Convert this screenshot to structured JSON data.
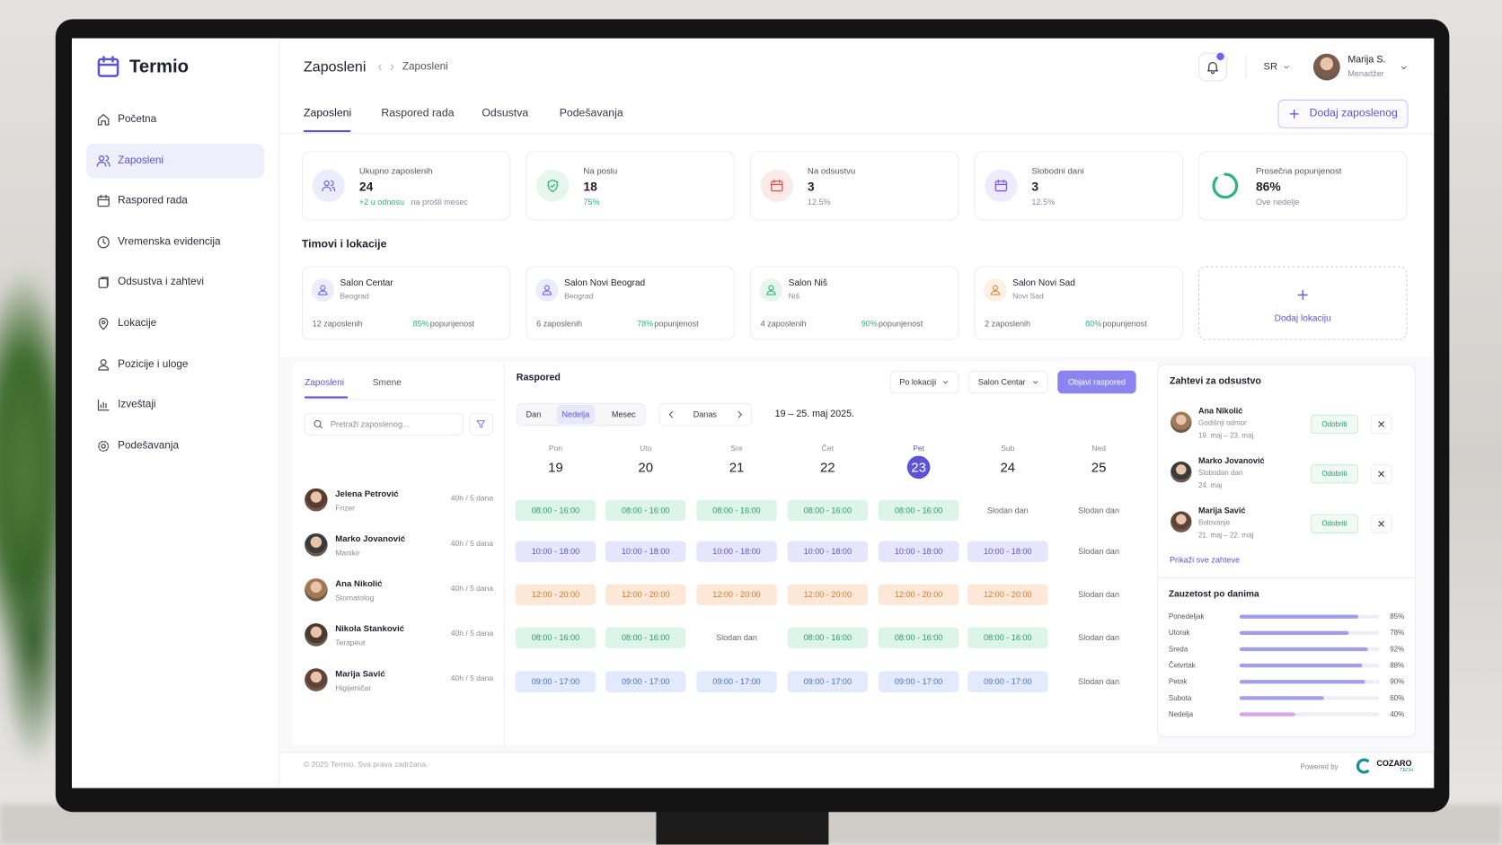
{
  "app": {
    "name": "Termio"
  },
  "sidebar": {
    "items": [
      "Početna",
      "Zaposleni",
      "Raspored rada",
      "Vremenska evidencija",
      "Odsustva i zahtevi",
      "Lokacije",
      "Pozicije i uloge",
      "Izveštaji",
      "Podešavanja"
    ]
  },
  "header": {
    "title": "Zaposleni",
    "breadcrumb": "Zaposleni",
    "language": "SR",
    "user_name": "Marija S.",
    "user_role": "Menadžer"
  },
  "tabs": {
    "items": [
      "Zaposleni",
      "Raspored rada",
      "Odsustva",
      "Podešavanja"
    ],
    "add_button": "Dodaj zaposlenog"
  },
  "stats": [
    {
      "label": "Ukupno zaposlenih",
      "value": 24,
      "note_highlight": "+2 u odnosu",
      "note": "na prošli mesec",
      "color": "#6c63ff"
    },
    {
      "label": "Na poslu",
      "value": 18,
      "note": "75%",
      "note_color": "#2fb47c",
      "color": "#2fb47c"
    },
    {
      "label": "Na odsustvu",
      "value": 3,
      "note": "12.5%",
      "color": "#e5534b"
    },
    {
      "label": "Slobodni dani",
      "value": 3,
      "note": "12.5%",
      "color": "#7a5af8"
    },
    {
      "label": "Prosečna popunjenost",
      "value": 86,
      "value_label": "86%",
      "note": "Ove nedelje",
      "color": "#2fb47c"
    }
  ],
  "teams": {
    "title": "Timovi i lokacije",
    "occupancy_label": "popunjenost",
    "add": "Dodaj lokaciju",
    "items": [
      {
        "name": "Salon Centar",
        "city": "Beograd",
        "employees": "12 zaposlenih",
        "occupancy": "85%",
        "color": "#6c63ff"
      },
      {
        "name": "Salon Novi Beograd",
        "city": "Beograd",
        "employees": "6 zaposlenih",
        "occupancy": "78%",
        "color": "#6c63ff"
      },
      {
        "name": "Salon Niš",
        "city": "Niš",
        "employees": "4 zaposlenih",
        "occupancy": "90%",
        "color": "#2fb47c"
      },
      {
        "name": "Salon Novi Sad",
        "city": "Novi Sad",
        "employees": "2 zaposlenih",
        "occupancy": "80%",
        "color": "#e8833a"
      }
    ]
  },
  "staff": {
    "tabs": [
      "Zaposleni",
      "Smene"
    ],
    "search_placeholder": "Pretraži zaposlenog...",
    "employees": [
      {
        "name": "Jelena Petrović",
        "role": "Frizer",
        "hours": "40h / 5 dana"
      },
      {
        "name": "Marko Jovanović",
        "role": "Manikir",
        "hours": "40h / 5 dana"
      },
      {
        "name": "Ana Nikolić",
        "role": "Stomatolog",
        "hours": "40h / 5 dana"
      },
      {
        "name": "Nikola Stanković",
        "role": "Terapeut",
        "hours": "40h / 5 dana"
      },
      {
        "name": "Marija Savić",
        "role": "Higijeničar",
        "hours": "40h / 5 dana"
      }
    ]
  },
  "schedule": {
    "title": "Raspored",
    "filter_location": "Po lokaciji",
    "filter_salon": "Salon Centar",
    "publish": "Objavi raspored",
    "views": [
      "Dan",
      "Nedelja",
      "Mesec"
    ],
    "today": "Danas",
    "range": "19 – 25. maj 2025.",
    "days": [
      {
        "name": "Pon",
        "date": 19
      },
      {
        "name": "Uto",
        "date": 20
      },
      {
        "name": "Sre",
        "date": 21
      },
      {
        "name": "Čet",
        "date": 22
      },
      {
        "name": "Pet",
        "date": 23
      },
      {
        "name": "Sub",
        "date": 24
      },
      {
        "name": "Ned",
        "date": 25
      }
    ],
    "off_label": "Slodan dan",
    "rows": [
      {
        "shift": "08:00 - 16:00",
        "bg": "#dcf4ea",
        "color": "#2a9a6a",
        "working": [
          true,
          true,
          true,
          true,
          true,
          false,
          false
        ]
      },
      {
        "shift": "10:00 - 18:00",
        "bg": "#e6e5fb",
        "color": "#5a55cf",
        "working": [
          true,
          true,
          true,
          true,
          true,
          true,
          false
        ]
      },
      {
        "shift": "12:00 - 20:00",
        "bg": "#fde8d8",
        "color": "#d07a2c",
        "working": [
          true,
          true,
          true,
          true,
          true,
          true,
          false
        ]
      },
      {
        "shift": "08:00 - 16:00",
        "bg": "#dcf4ea",
        "color": "#2a9a6a",
        "working": [
          true,
          true,
          false,
          true,
          true,
          true,
          false
        ]
      },
      {
        "shift": "09:00 - 17:00",
        "bg": "#e2eafb",
        "color": "#4670c4",
        "working": [
          true,
          true,
          true,
          true,
          true,
          true,
          false
        ]
      }
    ]
  },
  "requests": {
    "title": "Zahtevi za odsustvo",
    "approve": "Odobriti",
    "show_all": "Prikaži sve zahteve",
    "items": [
      {
        "name": "Ana Nikolić",
        "type": "Godišnji odmor",
        "dates": "19. maj – 23. maj"
      },
      {
        "name": "Marko Jovanović",
        "type": "Slobodan dan",
        "dates": "24. maj"
      },
      {
        "name": "Marija Savić",
        "type": "Bolovanje",
        "dates": "21. maj – 22. maj"
      }
    ]
  },
  "chart_data": {
    "type": "bar",
    "title": "Zauzetost po danima",
    "categories": [
      "Ponedeljak",
      "Utorak",
      "Sreda",
      "Četvrtak",
      "Petak",
      "Subota",
      "Nedelja"
    ],
    "values": [
      85,
      78,
      92,
      88,
      90,
      60,
      40
    ],
    "value_labels": [
      "85%",
      "78%",
      "92%",
      "88%",
      "90%",
      "60%",
      "40%"
    ],
    "colors": [
      "#a39ded",
      "#a39ded",
      "#a39ded",
      "#a39ded",
      "#a39ded",
      "#a39ded",
      "#d6a6ec"
    ],
    "xlim": [
      0,
      100
    ]
  },
  "footer": {
    "copyright": "© 2025 Termio. Sva prava zadržana.",
    "powered_by": "Powered by",
    "brand": "COZARO",
    "brand_sub": "TECH"
  }
}
